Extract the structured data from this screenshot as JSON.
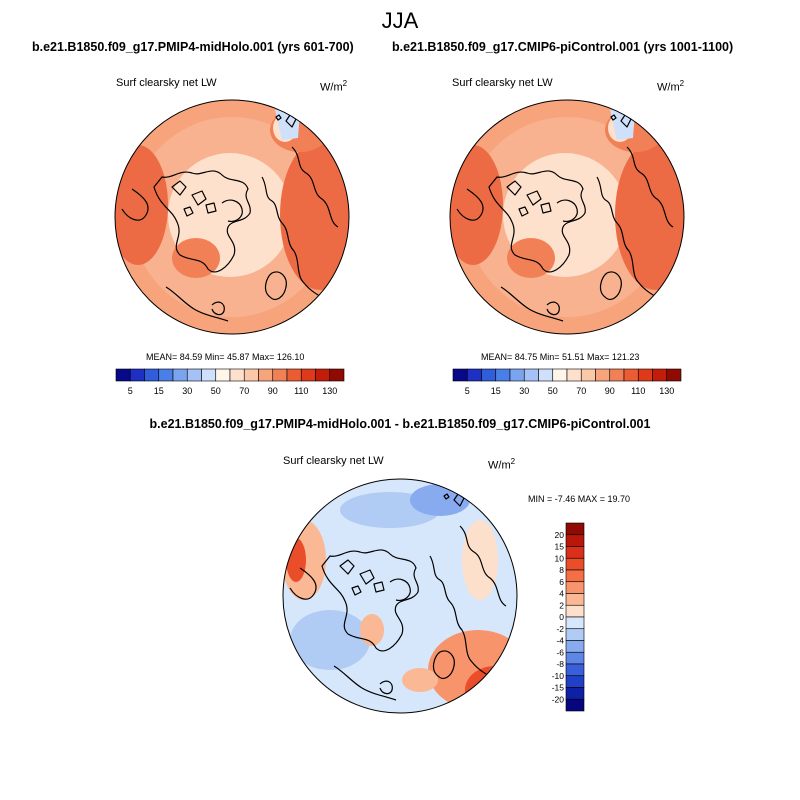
{
  "title": "JJA",
  "panels": [
    {
      "run_title": "b.e21.B1850.f09_g17.PMIP4-midHolo.001 (yrs 601-700)",
      "variable": "Surf clearsky net LW",
      "units_base": "W/m",
      "units_exp": "2",
      "stats_text": "MEAN=  84.59  Min=  45.87  Max= 126.10"
    },
    {
      "run_title": "b.e21.B1850.f09_g17.CMIP6-piControl.001 (yrs 1001-1100)",
      "variable": "Surf clearsky net LW",
      "units_base": "W/m",
      "units_exp": "2",
      "stats_text": "MEAN=  84.75  Min=  51.51  Max= 121.23"
    }
  ],
  "colorbar_top": {
    "labels": [
      "5",
      "15",
      "30",
      "50",
      "70",
      "90",
      "110",
      "130"
    ],
    "colors": [
      "#08088a",
      "#1e2fc4",
      "#2f5ddb",
      "#4a7fe8",
      "#7aa3f0",
      "#a5c1f5",
      "#cfe0fa",
      "#fff5e8",
      "#fde1cd",
      "#fbc8a8",
      "#f7a47d",
      "#f28056",
      "#ec5c33",
      "#de3a1a",
      "#c41c0a",
      "#8e0a02"
    ]
  },
  "difference": {
    "title": "b.e21.B1850.f09_g17.PMIP4-midHolo.001 - b.e21.B1850.f09_g17.CMIP6-piControl.001",
    "variable": "Surf clearsky net LW",
    "units_base": "W/m",
    "units_exp": "2",
    "stats_text": "MIN =  -7.46 MAX =  19.70",
    "colorbar_labels": [
      "20",
      "15",
      "10",
      "8",
      "6",
      "4",
      "2",
      "0",
      "-2",
      "-4",
      "-6",
      "-8",
      "-10",
      "-15",
      "-20"
    ],
    "colorbar_colors": [
      "#8e0a02",
      "#b8170a",
      "#d8301a",
      "#ea4d2a",
      "#f46f45",
      "#f8946c",
      "#fbb894",
      "#fde0cb",
      "#d6e6fb",
      "#b0cbf4",
      "#88aaee",
      "#5f86e6",
      "#3a5fda",
      "#2040c8",
      "#1020a6",
      "#06067e"
    ]
  },
  "chart_data": [
    {
      "type": "heatmap",
      "projection": "north polar stereographic",
      "title": "b.e21.B1850.f09_g17.PMIP4-midHolo.001 (yrs 601-700)",
      "variable": "Surf clearsky net LW",
      "units": "W/m^2",
      "mean": 84.59,
      "min": 45.87,
      "max": 126.1,
      "levels": [
        5,
        15,
        30,
        50,
        70,
        90,
        110,
        130
      ]
    },
    {
      "type": "heatmap",
      "projection": "north polar stereographic",
      "title": "b.e21.B1850.f09_g17.CMIP6-piControl.001 (yrs 1001-1100)",
      "variable": "Surf clearsky net LW",
      "units": "W/m^2",
      "mean": 84.75,
      "min": 51.51,
      "max": 121.23,
      "levels": [
        5,
        15,
        30,
        50,
        70,
        90,
        110,
        130
      ]
    },
    {
      "type": "heatmap",
      "projection": "north polar stereographic",
      "title": "b.e21.B1850.f09_g17.PMIP4-midHolo.001 - b.e21.B1850.f09_g17.CMIP6-piControl.001",
      "variable": "Surf clearsky net LW",
      "units": "W/m^2",
      "min": -7.46,
      "max": 19.7,
      "levels": [
        -20,
        -15,
        -10,
        -8,
        -6,
        -4,
        -2,
        0,
        2,
        4,
        6,
        8,
        10,
        15,
        20
      ]
    }
  ]
}
